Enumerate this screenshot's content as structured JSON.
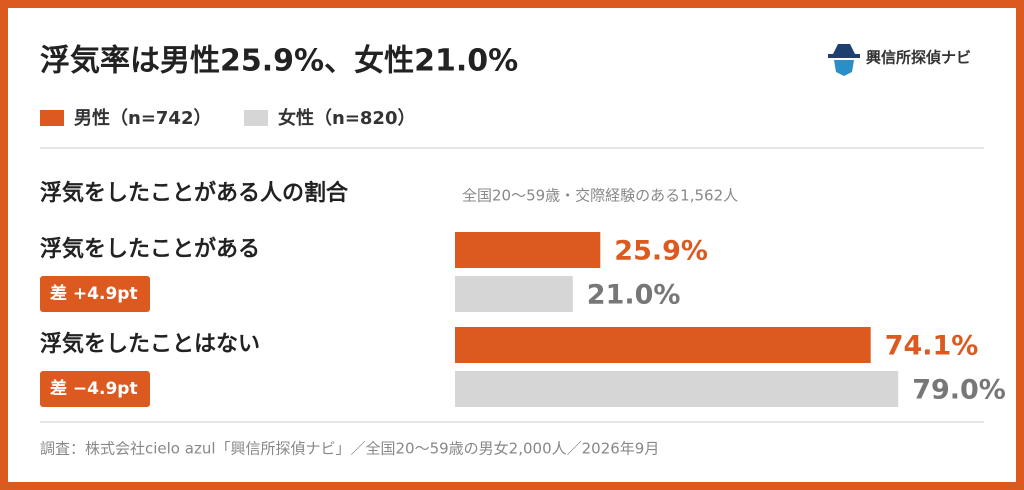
{
  "chart_data": {
    "type": "bar",
    "orientation": "horizontal",
    "title": "浮気率は男性25.9%、女性21.0%",
    "brand": "興信所探偵ナビ",
    "subtitle": "浮気をしたことがある人の割合",
    "note": "全国20〜59歳・交際経験のある1,562人",
    "categories": [
      "浮気をしたことがある",
      "浮気をしたことはない"
    ],
    "series": [
      {
        "name": "男性（n=742）",
        "color": "#dc5a20",
        "values": [
          25.9,
          74.1
        ],
        "value_labels": [
          "25.9%",
          "74.1%"
        ]
      },
      {
        "name": "女性（n=820）",
        "color": "#d6d6d6",
        "values": [
          21.0,
          79.0
        ],
        "value_labels": [
          "21.0%",
          "79.0%"
        ]
      }
    ],
    "annotations": [
      "差 +4.9pt",
      "差 −4.9pt"
    ],
    "source": "調査：株式会社cielo azul「興信所探偵ナビ」／全国20〜59歳の男女2,000人／2026年9月"
  }
}
